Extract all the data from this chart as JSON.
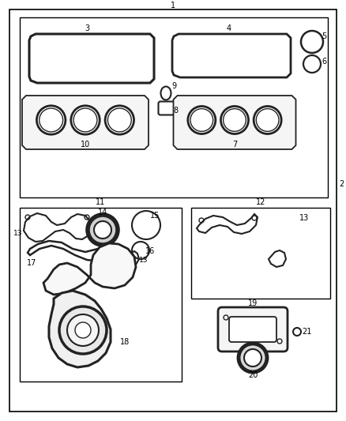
{
  "bg_color": "#ffffff",
  "lc": "#000000",
  "plc": "#222222",
  "label_fs": 7,
  "figsize": [
    4.38,
    5.33
  ],
  "dpi": 100
}
